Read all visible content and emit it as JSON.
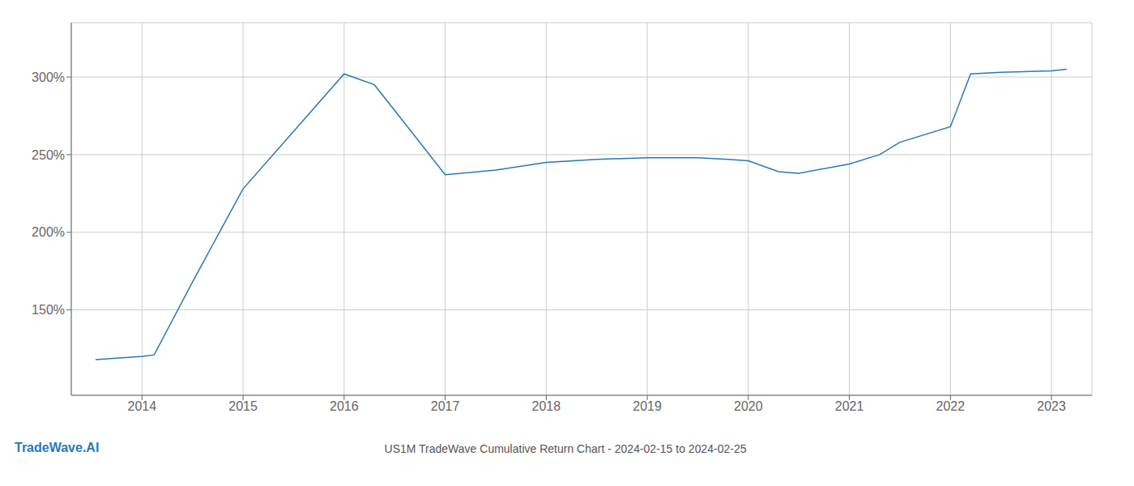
{
  "chart_data": {
    "type": "line",
    "title": "US1M TradeWave Cumulative Return Chart - 2024-02-15 to 2024-02-25",
    "annotations": [
      "TradeWave.AI"
    ],
    "x": [
      2013.54,
      2014.0,
      2014.12,
      2014.5,
      2015.0,
      2015.5,
      2016.0,
      2016.3,
      2016.7,
      2017.0,
      2017.5,
      2018.0,
      2018.5,
      2019.0,
      2019.3,
      2019.5,
      2019.8,
      2020.0,
      2020.3,
      2020.5,
      2021.0,
      2021.3,
      2021.5,
      2022.0,
      2022.2,
      2022.5,
      2023.0,
      2023.15
    ],
    "values": [
      118,
      120,
      121,
      168,
      228,
      265,
      302,
      295,
      262,
      237,
      240,
      245,
      247,
      248,
      248,
      248,
      247,
      246,
      239,
      238,
      244,
      250,
      258,
      268,
      302,
      303,
      304,
      305
    ],
    "color": "#2878b8",
    "xlim": [
      2013.3,
      2023.4
    ],
    "ylim": [
      95,
      335
    ],
    "xticks": [
      2014,
      2015,
      2016,
      2017,
      2018,
      2019,
      2020,
      2021,
      2022,
      2023
    ],
    "yticks": [
      {
        "value": 150,
        "label": "150%"
      },
      {
        "value": 200,
        "label": "200%"
      },
      {
        "value": 250,
        "label": "250%"
      },
      {
        "value": 300,
        "label": "300%"
      }
    ],
    "grid": true
  }
}
